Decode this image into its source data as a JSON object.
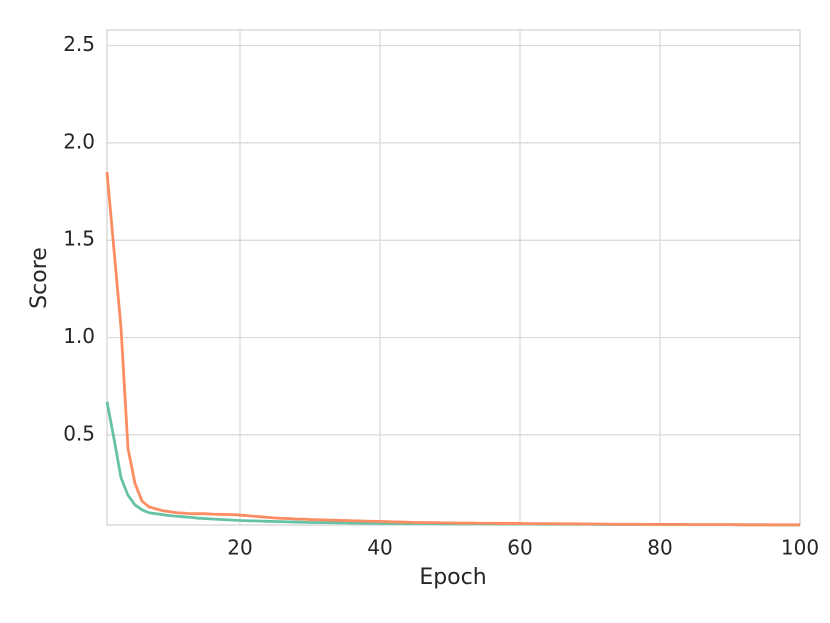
{
  "chart_data": {
    "type": "line",
    "x_label": "Epoch",
    "y_label": "Score",
    "x": [
      1,
      2,
      3,
      4,
      5,
      6,
      7,
      8,
      9,
      10,
      11,
      12,
      13,
      14,
      15,
      16,
      17,
      18,
      19,
      20,
      21,
      22,
      23,
      24,
      25,
      26,
      27,
      28,
      29,
      30,
      31,
      32,
      33,
      34,
      35,
      36,
      37,
      38,
      39,
      40,
      41,
      42,
      43,
      44,
      45,
      46,
      47,
      48,
      49,
      50,
      51,
      52,
      53,
      54,
      55,
      56,
      57,
      58,
      59,
      60,
      61,
      62,
      63,
      64,
      65,
      66,
      67,
      68,
      69,
      70,
      71,
      72,
      73,
      74,
      75,
      76,
      77,
      78,
      79,
      80,
      81,
      82,
      83,
      84,
      85,
      86,
      87,
      88,
      89,
      90,
      91,
      92,
      93,
      94,
      95,
      96,
      97,
      98,
      99,
      100
    ],
    "series": [
      {
        "color": "#fc8d62",
        "values": [
          1.85,
          1.45,
          1.05,
          0.43,
          0.25,
          0.16,
          0.13,
          0.12,
          0.11,
          0.105,
          0.1,
          0.098,
          0.095,
          0.095,
          0.095,
          0.093,
          0.092,
          0.091,
          0.09,
          0.088,
          0.085,
          0.082,
          0.079,
          0.076,
          0.073,
          0.071,
          0.07,
          0.068,
          0.067,
          0.065,
          0.064,
          0.063,
          0.062,
          0.061,
          0.06,
          0.059,
          0.058,
          0.057,
          0.056,
          0.055,
          0.054,
          0.053,
          0.052,
          0.051,
          0.05,
          0.05,
          0.049,
          0.049,
          0.048,
          0.048,
          0.047,
          0.047,
          0.047,
          0.046,
          0.046,
          0.046,
          0.045,
          0.045,
          0.045,
          0.045,
          0.044,
          0.044,
          0.044,
          0.044,
          0.043,
          0.043,
          0.043,
          0.043,
          0.042,
          0.042,
          0.042,
          0.042,
          0.041,
          0.041,
          0.041,
          0.041,
          0.041,
          0.04,
          0.04,
          0.04,
          0.04,
          0.04,
          0.04,
          0.039,
          0.039,
          0.039,
          0.039,
          0.039,
          0.039,
          0.039,
          0.039,
          0.038,
          0.038,
          0.038,
          0.038,
          0.038,
          0.038,
          0.038,
          0.038,
          0.038
        ]
      },
      {
        "color": "#66c2a5",
        "values": [
          0.67,
          0.48,
          0.28,
          0.19,
          0.14,
          0.115,
          0.1,
          0.095,
          0.09,
          0.085,
          0.082,
          0.079,
          0.076,
          0.072,
          0.07,
          0.068,
          0.066,
          0.064,
          0.062,
          0.06,
          0.059,
          0.058,
          0.057,
          0.056,
          0.055,
          0.054,
          0.053,
          0.052,
          0.051,
          0.05,
          0.05,
          0.049,
          0.049,
          0.048,
          0.048,
          0.047,
          0.047,
          0.046,
          0.046,
          0.045,
          0.045,
          0.045,
          0.045,
          0.044,
          0.044,
          0.044,
          0.044,
          0.044,
          0.043,
          0.043,
          0.043,
          0.043,
          0.043,
          0.043,
          0.042,
          0.042,
          0.042,
          0.042,
          0.042,
          0.042,
          0.042,
          0.042,
          0.041,
          0.041,
          0.041,
          0.041,
          0.041,
          0.041,
          0.041,
          0.041,
          0.04,
          0.04,
          0.04,
          0.04,
          0.04,
          0.04,
          0.04,
          0.04,
          0.04,
          0.04,
          0.039,
          0.039,
          0.039,
          0.039,
          0.039,
          0.039,
          0.039,
          0.039,
          0.039,
          0.039,
          0.038,
          0.038,
          0.038,
          0.038,
          0.038,
          0.037,
          0.037,
          0.037,
          0.037,
          0.037
        ]
      }
    ],
    "xlim": [
      1,
      100
    ],
    "xticks": [
      20,
      40,
      60,
      80,
      100
    ],
    "ylim": [
      0.037,
      2.58
    ],
    "yticks": [
      0.5,
      {
        "value": 1,
        "label": "1.0"
      },
      1.5,
      {
        "value": 2,
        "label": "2.0"
      },
      2.5
    ],
    "grid": true
  }
}
